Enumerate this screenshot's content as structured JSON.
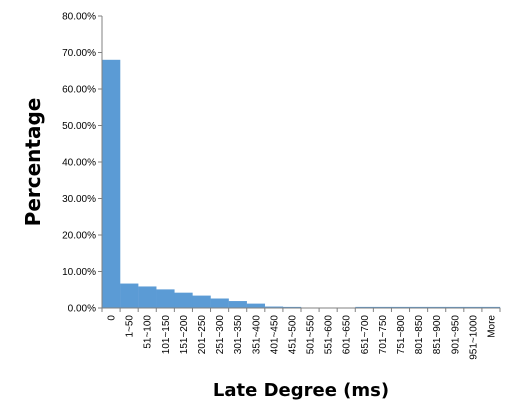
{
  "chart_data": {
    "type": "bar",
    "xlabel": "Late Degree (ms)",
    "ylabel": "Percentage",
    "ylim": [
      0,
      80
    ],
    "y_ticks": [
      "0.00%",
      "10.00%",
      "20.00%",
      "30.00%",
      "40.00%",
      "50.00%",
      "60.00%",
      "70.00%",
      "80.00%"
    ],
    "categories": [
      "0",
      "1~50",
      "51~100",
      "101~150",
      "151~200",
      "201~250",
      "251~300",
      "301~350",
      "351~400",
      "401~450",
      "451~500",
      "501~550",
      "551~600",
      "601~650",
      "651~700",
      "701~750",
      "751~800",
      "801~850",
      "851~900",
      "901~950",
      "951~1000",
      "More"
    ],
    "values": [
      68.0,
      6.7,
      5.9,
      5.1,
      4.2,
      3.4,
      2.6,
      1.9,
      1.2,
      0.4,
      0.3,
      0.1,
      0.1,
      0.1,
      0.3,
      0.3,
      0.3,
      0.3,
      0.3,
      0.3,
      0.3,
      0.3
    ],
    "colors": {
      "bar": "#5B9BD5",
      "axis": "#808080"
    },
    "grid": false,
    "legend": "none"
  }
}
